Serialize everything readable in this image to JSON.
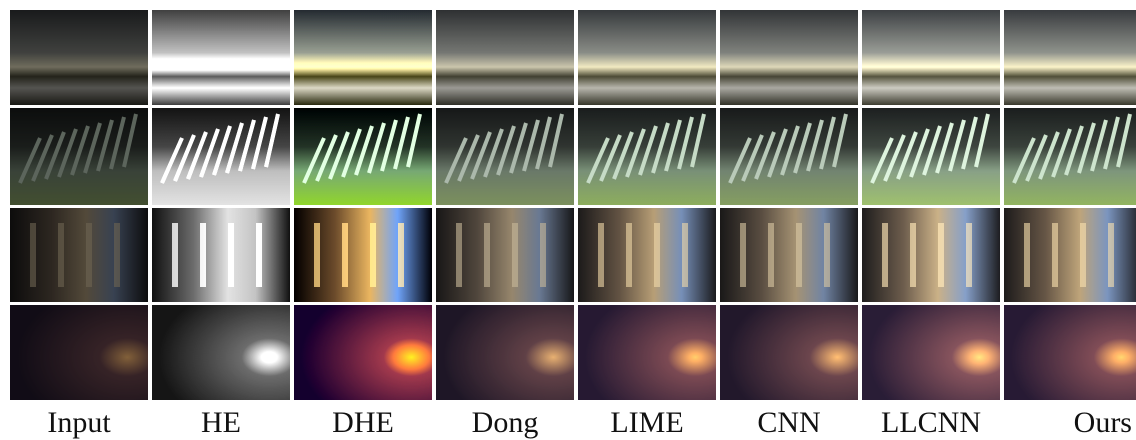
{
  "figure": {
    "columns": [
      "Input",
      "HE",
      "DHE",
      "Dong",
      "LIME",
      "CNN",
      "LLCNN",
      "Ours"
    ]
  }
}
